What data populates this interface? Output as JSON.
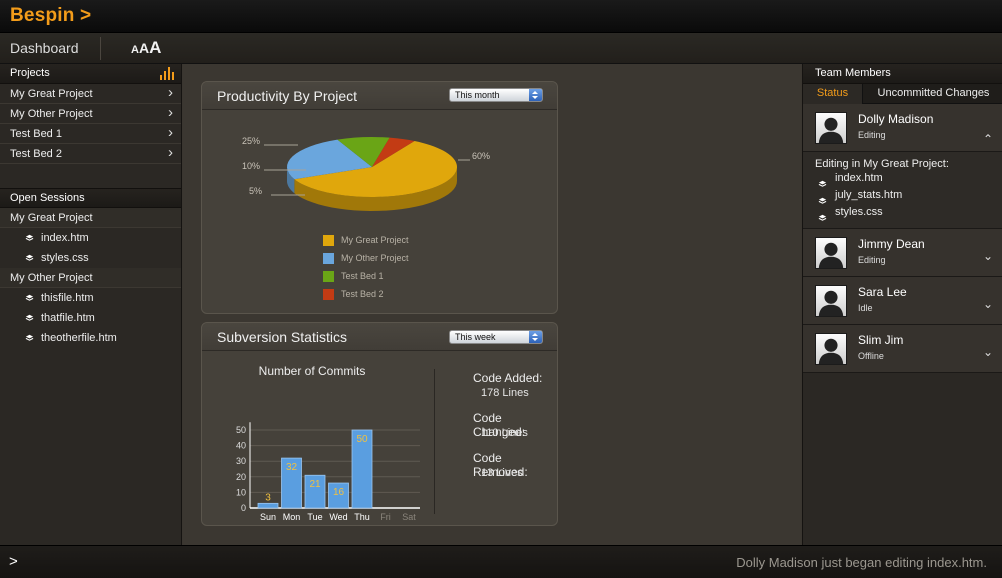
{
  "app": {
    "logo": "Bespin >"
  },
  "toolbar": {
    "dashboard_label": "Dashboard",
    "font_size_label": "AAA"
  },
  "projects": {
    "heading": "Projects",
    "items": [
      {
        "label": "My Great Project"
      },
      {
        "label": "My Other Project"
      },
      {
        "label": "Test Bed 1"
      },
      {
        "label": "Test Bed 2"
      }
    ]
  },
  "sessions": {
    "heading": "Open Sessions",
    "groups": [
      {
        "label": "My Great Project",
        "files": [
          "index.htm",
          "styles.css"
        ]
      },
      {
        "label": "My Other Project",
        "files": [
          "thisfile.htm",
          "thatfile.htm",
          "theotherfile.htm"
        ]
      }
    ]
  },
  "productivity": {
    "title": "Productivity By Project",
    "range": "This month"
  },
  "subversion": {
    "title": "Subversion Statistics",
    "range": "This week",
    "stats": [
      {
        "label": "Code Added:",
        "value": "178 Lines"
      },
      {
        "label": "Code Changed:",
        "value": "110 Lines"
      },
      {
        "label": "Code Removed:",
        "value": "13 Lines"
      }
    ]
  },
  "chart_data": [
    {
      "type": "pie",
      "labels": [
        "My Great Project",
        "My Other Project",
        "Test Bed 1",
        "Test Bed 2"
      ],
      "values": [
        60,
        25,
        10,
        5
      ],
      "value_labels": [
        "60%",
        "25%",
        "10%",
        "5%"
      ],
      "colors": [
        "#e0a70c",
        "#6aa6dd",
        "#6aa516",
        "#c33b14"
      ],
      "legend": "bottom"
    },
    {
      "type": "bar",
      "title": "Number of Commits",
      "categories": [
        "Sun",
        "Mon",
        "Tue",
        "Wed",
        "Thu",
        "Fri",
        "Sat"
      ],
      "dates": [
        "27",
        "28",
        "29",
        "30",
        "31",
        "1",
        "2"
      ],
      "values": [
        3,
        32,
        21,
        16,
        50,
        null,
        null
      ],
      "ylim": [
        0,
        55
      ],
      "yticks": [
        0,
        10,
        20,
        30,
        40,
        50
      ],
      "grid": true,
      "bar_color": "#5a9ee0",
      "label_color": "#f0c040"
    }
  ],
  "team": {
    "heading": "Team Members",
    "tabs": [
      {
        "label": "Status",
        "active": true
      },
      {
        "label": "Uncommitted Changes",
        "active": false
      }
    ],
    "members": [
      {
        "name": "Dolly Madison",
        "status": "Editing"
      },
      {
        "name": "Jimmy Dean",
        "status": "Editing"
      },
      {
        "name": "Sara Lee",
        "status": "Idle"
      },
      {
        "name": "Slim Jim",
        "status": "Offline"
      }
    ],
    "expanded": {
      "title": "Editing in My Great Project:",
      "files": [
        "index.htm",
        "july_stats.htm",
        "styles.css"
      ]
    }
  },
  "status_bar": {
    "prompt": ">",
    "message": "Dolly Madison just began editing index.htm."
  },
  "colors": {
    "accent": "#f39c1a"
  }
}
